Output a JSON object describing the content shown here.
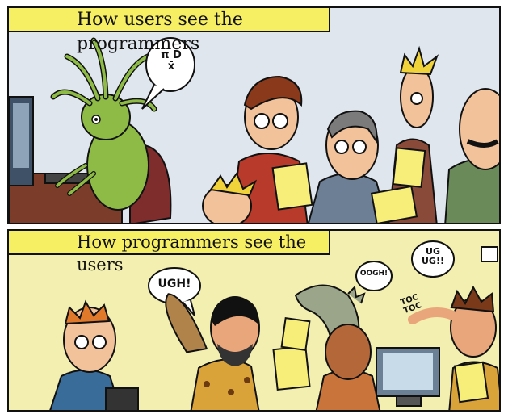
{
  "top_panel": {
    "caption": "How users see the programmers",
    "speech_bubble": {
      "line1": "π D",
      "line2": "x̄"
    }
  },
  "bottom_panel": {
    "caption": "How programmers see the users",
    "bubble_left": "UGH!",
    "bubble_mid": "OOGH!",
    "bubble_right_line1": "UG",
    "bubble_right_line2": "UG!!",
    "sfx_line1": "TOC",
    "sfx_line2": "TOC"
  },
  "colors": {
    "caption_yellow": "#f6ef63",
    "top_bg": "#dfe6ee",
    "bottom_bg": "#f2efb0",
    "alien_green": "#8dbb45",
    "caveman_skin": "#e9a67a"
  }
}
